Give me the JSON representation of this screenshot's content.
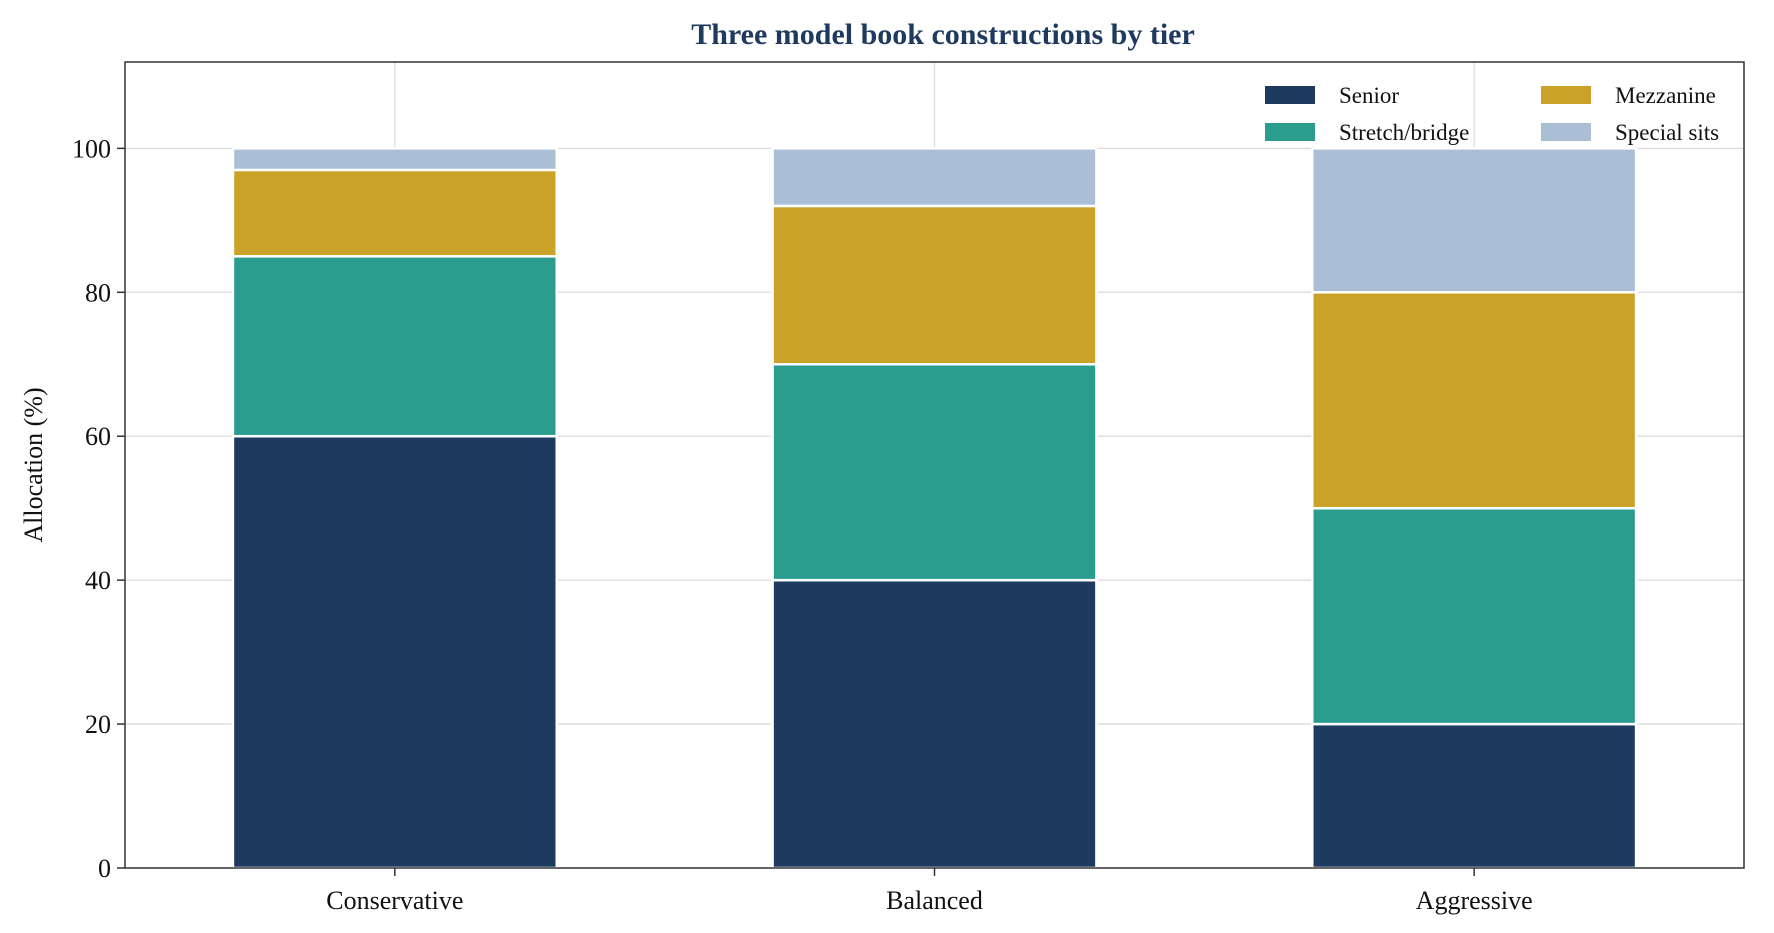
{
  "chart_data": {
    "type": "bar",
    "stacked": true,
    "title": "Three model book constructions by tier",
    "xlabel": "",
    "ylabel": "Allocation (%)",
    "ylim": [
      0,
      112
    ],
    "yticks": [
      0,
      20,
      40,
      60,
      80,
      100
    ],
    "grid": true,
    "legend_position": "top-right",
    "categories": [
      "Conservative",
      "Balanced",
      "Aggressive"
    ],
    "series": [
      {
        "name": "Senior",
        "color": "#1f3a5f",
        "values": [
          60,
          40,
          20
        ]
      },
      {
        "name": "Stretch/bridge",
        "color": "#2a9d8f",
        "values": [
          25,
          30,
          30
        ]
      },
      {
        "name": "Mezzanine",
        "color": "#c9a227",
        "values": [
          12,
          22,
          30
        ]
      },
      {
        "name": "Special sits",
        "color": "#aabfd6",
        "values": [
          3,
          8,
          20
        ]
      }
    ]
  }
}
